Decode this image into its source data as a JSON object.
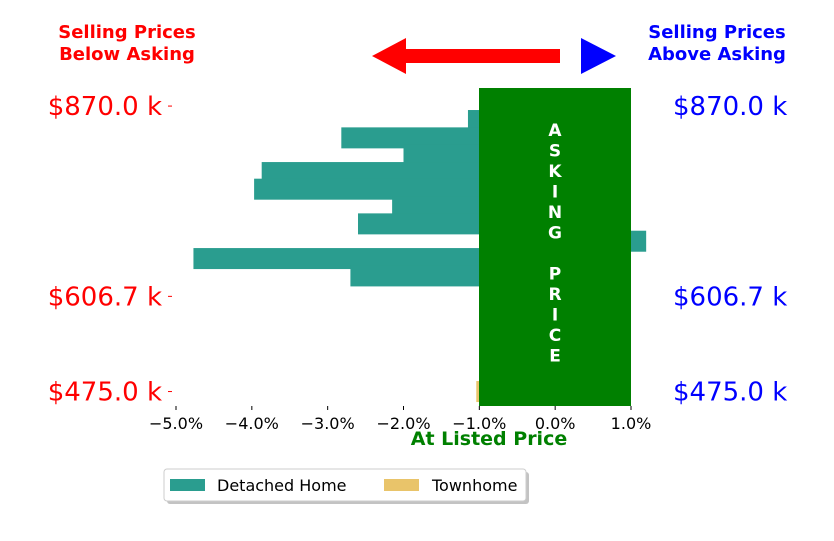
{
  "header": {
    "below_line1": "Selling Prices",
    "below_line2": "Below Asking",
    "above_line1": "Selling Prices",
    "above_line2": "Above Asking"
  },
  "colors": {
    "below": "#ff0000",
    "above": "#0000ff",
    "asking_box": "#008000",
    "detached": "#2a9d8f",
    "townhome": "#e9c46a"
  },
  "asking_box_letters": [
    "A",
    "S",
    "K",
    "I",
    "N",
    "G",
    "",
    "P",
    "R",
    "I",
    "C",
    "E"
  ],
  "chart_data": {
    "type": "bar",
    "orientation": "horizontal",
    "xlabel": "At Listed Price",
    "x_ticks": [
      "−5.0%",
      "−4.0%",
      "−3.0%",
      "−2.0%",
      "−1.0%",
      "0.0%",
      "1.0%"
    ],
    "xlim": [
      -5.0,
      1.0
    ],
    "y_tick_labels_left": [
      "$870.0 k",
      "$606.7 k",
      "$475.0 k"
    ],
    "y_tick_labels_right": [
      "$870.0 k",
      "$606.7 k",
      "$475.0 k"
    ],
    "y_tick_values": [
      870.0,
      606.7,
      475.0
    ],
    "ylim": [
      455,
      895
    ],
    "series": [
      {
        "name": "Detached Home",
        "color": "#2a9d8f",
        "bars": [
          {
            "price": 850,
            "value": -1.15
          },
          {
            "price": 826,
            "value": -2.82
          },
          {
            "price": 802,
            "value": -2.0
          },
          {
            "price": 778,
            "value": -3.87
          },
          {
            "price": 755,
            "value": -3.97
          },
          {
            "price": 731,
            "value": -2.15
          },
          {
            "price": 707,
            "value": -2.6
          },
          {
            "price": 683,
            "value": 1.2
          },
          {
            "price": 659,
            "value": -4.77
          },
          {
            "price": 635,
            "value": -2.7
          }
        ]
      },
      {
        "name": "Townhome",
        "color": "#e9c46a",
        "bars": [
          {
            "price": 475.0,
            "value": -1.04
          }
        ]
      }
    ],
    "legend": {
      "placement": "bottom-center",
      "entries": [
        "Detached Home",
        "Townhome"
      ]
    }
  }
}
